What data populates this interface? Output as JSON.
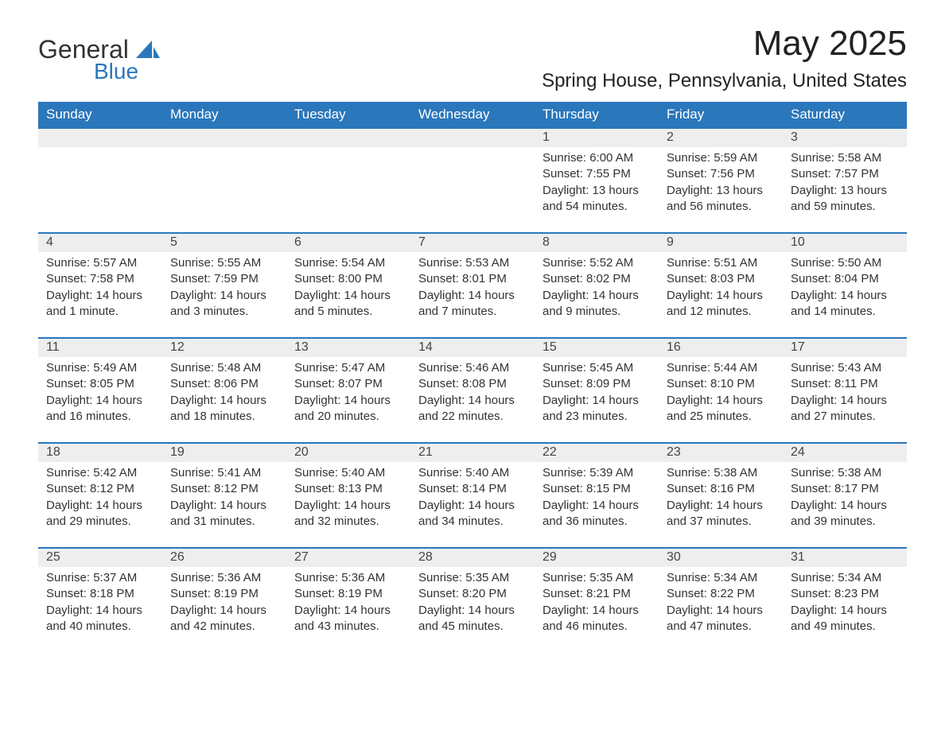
{
  "brand": {
    "name1": "General",
    "name2": "Blue"
  },
  "title": "May 2025",
  "location": "Spring House, Pennsylvania, United States",
  "colors": {
    "header_bg": "#2a77bb",
    "header_fg": "#ffffff",
    "daynum_bg": "#eeeeee",
    "rule": "#2a77bb",
    "page_bg": "#ffffff",
    "text": "#333333"
  },
  "weekdays": [
    "Sunday",
    "Monday",
    "Tuesday",
    "Wednesday",
    "Thursday",
    "Friday",
    "Saturday"
  ],
  "weeks": [
    [
      null,
      null,
      null,
      null,
      {
        "n": "1",
        "sunrise": "Sunrise: 6:00 AM",
        "sunset": "Sunset: 7:55 PM",
        "dl1": "Daylight: 13 hours",
        "dl2": "and 54 minutes."
      },
      {
        "n": "2",
        "sunrise": "Sunrise: 5:59 AM",
        "sunset": "Sunset: 7:56 PM",
        "dl1": "Daylight: 13 hours",
        "dl2": "and 56 minutes."
      },
      {
        "n": "3",
        "sunrise": "Sunrise: 5:58 AM",
        "sunset": "Sunset: 7:57 PM",
        "dl1": "Daylight: 13 hours",
        "dl2": "and 59 minutes."
      }
    ],
    [
      {
        "n": "4",
        "sunrise": "Sunrise: 5:57 AM",
        "sunset": "Sunset: 7:58 PM",
        "dl1": "Daylight: 14 hours",
        "dl2": "and 1 minute."
      },
      {
        "n": "5",
        "sunrise": "Sunrise: 5:55 AM",
        "sunset": "Sunset: 7:59 PM",
        "dl1": "Daylight: 14 hours",
        "dl2": "and 3 minutes."
      },
      {
        "n": "6",
        "sunrise": "Sunrise: 5:54 AM",
        "sunset": "Sunset: 8:00 PM",
        "dl1": "Daylight: 14 hours",
        "dl2": "and 5 minutes."
      },
      {
        "n": "7",
        "sunrise": "Sunrise: 5:53 AM",
        "sunset": "Sunset: 8:01 PM",
        "dl1": "Daylight: 14 hours",
        "dl2": "and 7 minutes."
      },
      {
        "n": "8",
        "sunrise": "Sunrise: 5:52 AM",
        "sunset": "Sunset: 8:02 PM",
        "dl1": "Daylight: 14 hours",
        "dl2": "and 9 minutes."
      },
      {
        "n": "9",
        "sunrise": "Sunrise: 5:51 AM",
        "sunset": "Sunset: 8:03 PM",
        "dl1": "Daylight: 14 hours",
        "dl2": "and 12 minutes."
      },
      {
        "n": "10",
        "sunrise": "Sunrise: 5:50 AM",
        "sunset": "Sunset: 8:04 PM",
        "dl1": "Daylight: 14 hours",
        "dl2": "and 14 minutes."
      }
    ],
    [
      {
        "n": "11",
        "sunrise": "Sunrise: 5:49 AM",
        "sunset": "Sunset: 8:05 PM",
        "dl1": "Daylight: 14 hours",
        "dl2": "and 16 minutes."
      },
      {
        "n": "12",
        "sunrise": "Sunrise: 5:48 AM",
        "sunset": "Sunset: 8:06 PM",
        "dl1": "Daylight: 14 hours",
        "dl2": "and 18 minutes."
      },
      {
        "n": "13",
        "sunrise": "Sunrise: 5:47 AM",
        "sunset": "Sunset: 8:07 PM",
        "dl1": "Daylight: 14 hours",
        "dl2": "and 20 minutes."
      },
      {
        "n": "14",
        "sunrise": "Sunrise: 5:46 AM",
        "sunset": "Sunset: 8:08 PM",
        "dl1": "Daylight: 14 hours",
        "dl2": "and 22 minutes."
      },
      {
        "n": "15",
        "sunrise": "Sunrise: 5:45 AM",
        "sunset": "Sunset: 8:09 PM",
        "dl1": "Daylight: 14 hours",
        "dl2": "and 23 minutes."
      },
      {
        "n": "16",
        "sunrise": "Sunrise: 5:44 AM",
        "sunset": "Sunset: 8:10 PM",
        "dl1": "Daylight: 14 hours",
        "dl2": "and 25 minutes."
      },
      {
        "n": "17",
        "sunrise": "Sunrise: 5:43 AM",
        "sunset": "Sunset: 8:11 PM",
        "dl1": "Daylight: 14 hours",
        "dl2": "and 27 minutes."
      }
    ],
    [
      {
        "n": "18",
        "sunrise": "Sunrise: 5:42 AM",
        "sunset": "Sunset: 8:12 PM",
        "dl1": "Daylight: 14 hours",
        "dl2": "and 29 minutes."
      },
      {
        "n": "19",
        "sunrise": "Sunrise: 5:41 AM",
        "sunset": "Sunset: 8:12 PM",
        "dl1": "Daylight: 14 hours",
        "dl2": "and 31 minutes."
      },
      {
        "n": "20",
        "sunrise": "Sunrise: 5:40 AM",
        "sunset": "Sunset: 8:13 PM",
        "dl1": "Daylight: 14 hours",
        "dl2": "and 32 minutes."
      },
      {
        "n": "21",
        "sunrise": "Sunrise: 5:40 AM",
        "sunset": "Sunset: 8:14 PM",
        "dl1": "Daylight: 14 hours",
        "dl2": "and 34 minutes."
      },
      {
        "n": "22",
        "sunrise": "Sunrise: 5:39 AM",
        "sunset": "Sunset: 8:15 PM",
        "dl1": "Daylight: 14 hours",
        "dl2": "and 36 minutes."
      },
      {
        "n": "23",
        "sunrise": "Sunrise: 5:38 AM",
        "sunset": "Sunset: 8:16 PM",
        "dl1": "Daylight: 14 hours",
        "dl2": "and 37 minutes."
      },
      {
        "n": "24",
        "sunrise": "Sunrise: 5:38 AM",
        "sunset": "Sunset: 8:17 PM",
        "dl1": "Daylight: 14 hours",
        "dl2": "and 39 minutes."
      }
    ],
    [
      {
        "n": "25",
        "sunrise": "Sunrise: 5:37 AM",
        "sunset": "Sunset: 8:18 PM",
        "dl1": "Daylight: 14 hours",
        "dl2": "and 40 minutes."
      },
      {
        "n": "26",
        "sunrise": "Sunrise: 5:36 AM",
        "sunset": "Sunset: 8:19 PM",
        "dl1": "Daylight: 14 hours",
        "dl2": "and 42 minutes."
      },
      {
        "n": "27",
        "sunrise": "Sunrise: 5:36 AM",
        "sunset": "Sunset: 8:19 PM",
        "dl1": "Daylight: 14 hours",
        "dl2": "and 43 minutes."
      },
      {
        "n": "28",
        "sunrise": "Sunrise: 5:35 AM",
        "sunset": "Sunset: 8:20 PM",
        "dl1": "Daylight: 14 hours",
        "dl2": "and 45 minutes."
      },
      {
        "n": "29",
        "sunrise": "Sunrise: 5:35 AM",
        "sunset": "Sunset: 8:21 PM",
        "dl1": "Daylight: 14 hours",
        "dl2": "and 46 minutes."
      },
      {
        "n": "30",
        "sunrise": "Sunrise: 5:34 AM",
        "sunset": "Sunset: 8:22 PM",
        "dl1": "Daylight: 14 hours",
        "dl2": "and 47 minutes."
      },
      {
        "n": "31",
        "sunrise": "Sunrise: 5:34 AM",
        "sunset": "Sunset: 8:23 PM",
        "dl1": "Daylight: 14 hours",
        "dl2": "and 49 minutes."
      }
    ]
  ]
}
